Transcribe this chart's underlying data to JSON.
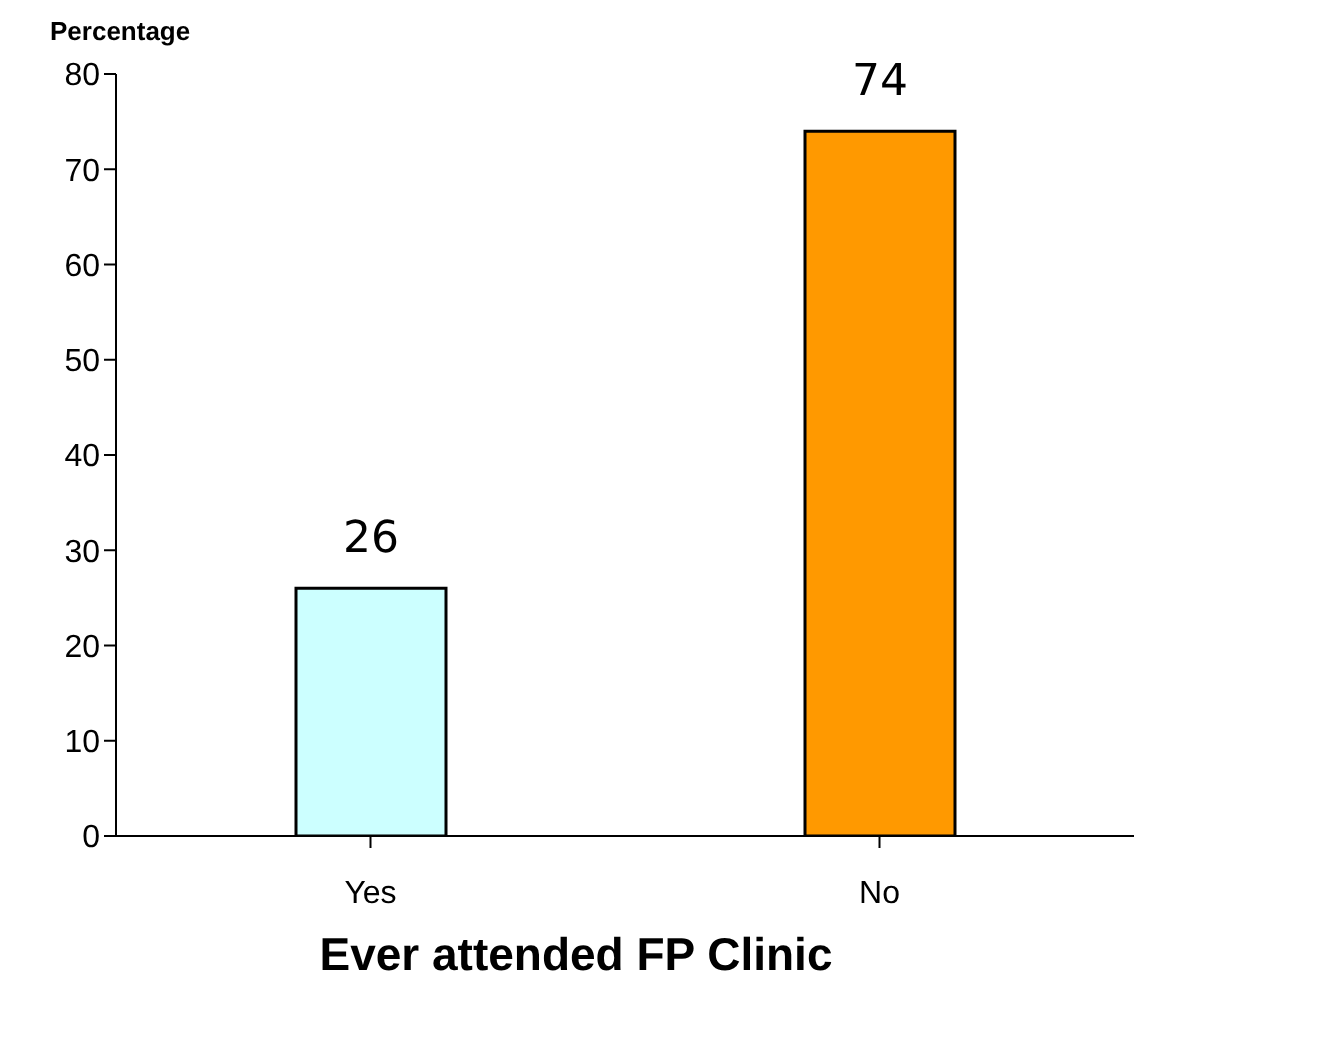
{
  "chart_data": {
    "type": "bar",
    "xlabel": "Ever attended FP Clinic",
    "ylabel": "Percentage",
    "categories": [
      "Yes",
      "No"
    ],
    "values": [
      26,
      74
    ],
    "colors": [
      "#ccffff",
      "#ff9900"
    ],
    "ylim": [
      0,
      80
    ],
    "yticks": [
      0,
      10,
      20,
      30,
      40,
      50,
      60,
      70,
      80
    ],
    "data_labels": true,
    "grid": false
  }
}
